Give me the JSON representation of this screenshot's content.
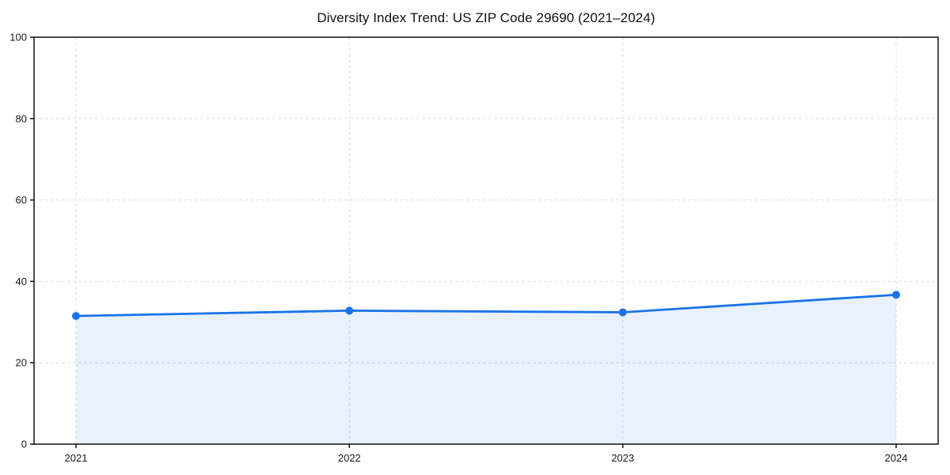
{
  "figure": {
    "background": "#ffffff"
  },
  "chart_data": {
    "type": "area",
    "title": "Diversity Index Trend: US ZIP Code 29690 (2021–2024)",
    "series_name": "Diversity Index",
    "x": [
      2021,
      2022,
      2023,
      2024
    ],
    "values": [
      31.5,
      32.8,
      32.4,
      36.7
    ],
    "xlabel": "",
    "ylabel": "",
    "ylim": [
      0,
      100
    ],
    "yticks": [
      0,
      20,
      40,
      60,
      80,
      100
    ],
    "xticks": [
      "2021",
      "2022",
      "2023",
      "2024"
    ],
    "grid": "dashed",
    "legend": "none",
    "colors": {
      "line": "#1a73e8",
      "marker": "#1a73e8",
      "fill": "rgba(26,115,232,0.10)",
      "gridline": "#dedede",
      "spine": "#000000",
      "tick_label": "#1a1a1a"
    }
  }
}
